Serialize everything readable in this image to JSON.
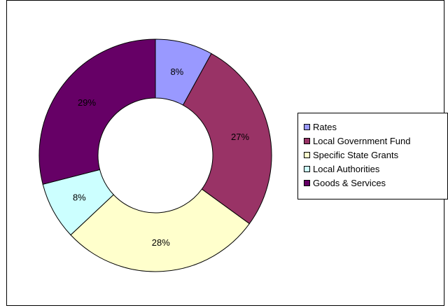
{
  "chart_data": {
    "type": "pie",
    "subtype": "donut",
    "title": "",
    "categories": [
      "Rates",
      "Local Government Fund",
      "Specific State Grants",
      "Local Authorities",
      "Goods & Services"
    ],
    "values": [
      8,
      27,
      28,
      8,
      29
    ],
    "value_labels": [
      "8%",
      "27%",
      "28%",
      "8%",
      "29%"
    ],
    "colors": [
      "#9999ff",
      "#993366",
      "#ffffcc",
      "#ccffff",
      "#660066"
    ],
    "legend": {
      "position": "right"
    }
  }
}
